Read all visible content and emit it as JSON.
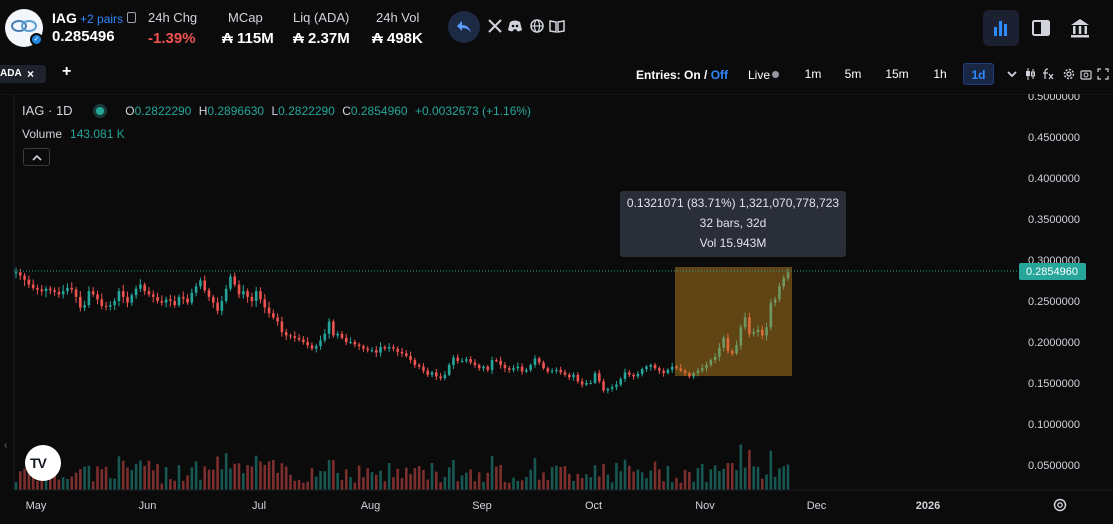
{
  "header": {
    "symbol": "IAG",
    "pairs_label": "+2 pairs",
    "price": "0.285496",
    "stats": [
      {
        "label": "24h Chg",
        "value": "-1.39%",
        "negative": true
      },
      {
        "label": "MCap",
        "value": "₳ 115M",
        "negative": false
      },
      {
        "label": "Liq (ADA)",
        "value": "₳ 2.37M",
        "negative": false
      },
      {
        "label": "24h Vol",
        "value": "₳ 498K",
        "negative": false
      }
    ]
  },
  "toolbar": {
    "tab_label": "ADA",
    "tab_close": "×",
    "add_tab": "+",
    "entries_prefix": "Entries: On /",
    "entries_off": "Off",
    "live_label": "Live",
    "timeframes": [
      "1m",
      "5m",
      "15m",
      "1h",
      "1d"
    ],
    "active_timeframe": "1d"
  },
  "legend": {
    "title": "IAG · 1D",
    "o_key": "O",
    "o_val": "0.2822290",
    "h_key": "H",
    "h_val": "0.2896630",
    "l_key": "L",
    "l_val": "0.2822290",
    "c_key": "C",
    "c_val": "0.2854960",
    "change": "+0.0032673 (+1.16%)",
    "volume_label": "Volume",
    "volume_value": "143.081 K"
  },
  "measure_tooltip": {
    "line1": "0.1321071 (83.71%) 1,321,070,778,723",
    "line2": "32 bars, 32d",
    "line3": "Vol 15.943M"
  },
  "chart_data": {
    "type": "candlestick",
    "up_color": "#26a69a",
    "down_color": "#ef5350",
    "y_ticks": [
      "0.5000000",
      "0.4500000",
      "0.4000000",
      "0.3500000",
      "0.3000000",
      "0.2500000",
      "0.2000000",
      "0.1500000",
      "0.1000000",
      "0.0500000"
    ],
    "ylim": [
      0.0,
      0.5
    ],
    "x_ticks": [
      "May",
      "Jun",
      "Jul",
      "Aug",
      "Sep",
      "Oct",
      "Nov",
      "Dec",
      "2026"
    ],
    "current_price_label": "0.2854960",
    "close": [
      0.285,
      0.281,
      0.276,
      0.27,
      0.266,
      0.264,
      0.262,
      0.265,
      0.263,
      0.261,
      0.258,
      0.262,
      0.266,
      0.264,
      0.255,
      0.242,
      0.245,
      0.262,
      0.258,
      0.252,
      0.244,
      0.243,
      0.245,
      0.25,
      0.262,
      0.255,
      0.248,
      0.257,
      0.265,
      0.27,
      0.262,
      0.258,
      0.255,
      0.25,
      0.248,
      0.252,
      0.25,
      0.245,
      0.255,
      0.253,
      0.248,
      0.26,
      0.268,
      0.275,
      0.263,
      0.255,
      0.248,
      0.238,
      0.25,
      0.265,
      0.28,
      0.27,
      0.258,
      0.262,
      0.255,
      0.25,
      0.262,
      0.252,
      0.242,
      0.235,
      0.23,
      0.225,
      0.212,
      0.208,
      0.207,
      0.205,
      0.203,
      0.2,
      0.196,
      0.192,
      0.195,
      0.202,
      0.21,
      0.225,
      0.208,
      0.21,
      0.205,
      0.2,
      0.2,
      0.197,
      0.195,
      0.192,
      0.19,
      0.19,
      0.187,
      0.194,
      0.192,
      0.194,
      0.192,
      0.188,
      0.186,
      0.183,
      0.178,
      0.172,
      0.17,
      0.165,
      0.16,
      0.163,
      0.158,
      0.156,
      0.16,
      0.172,
      0.181,
      0.177,
      0.177,
      0.179,
      0.175,
      0.172,
      0.168,
      0.17,
      0.166,
      0.178,
      0.177,
      0.172,
      0.168,
      0.166,
      0.168,
      0.17,
      0.164,
      0.166,
      0.172,
      0.18,
      0.175,
      0.168,
      0.164,
      0.165,
      0.166,
      0.163,
      0.16,
      0.157,
      0.16,
      0.152,
      0.148,
      0.15,
      0.15,
      0.162,
      0.152,
      0.141,
      0.143,
      0.145,
      0.148,
      0.155,
      0.163,
      0.16,
      0.158,
      0.161,
      0.167,
      0.17,
      0.172,
      0.168,
      0.165,
      0.162,
      0.166,
      0.17,
      0.168,
      0.165,
      0.162,
      0.158,
      0.162,
      0.165,
      0.168,
      0.172,
      0.178,
      0.182,
      0.193,
      0.205,
      0.189,
      0.186,
      0.196,
      0.218,
      0.23,
      0.21,
      0.212,
      0.215,
      0.208,
      0.218,
      0.248,
      0.252,
      0.268,
      0.278,
      0.285
    ]
  }
}
